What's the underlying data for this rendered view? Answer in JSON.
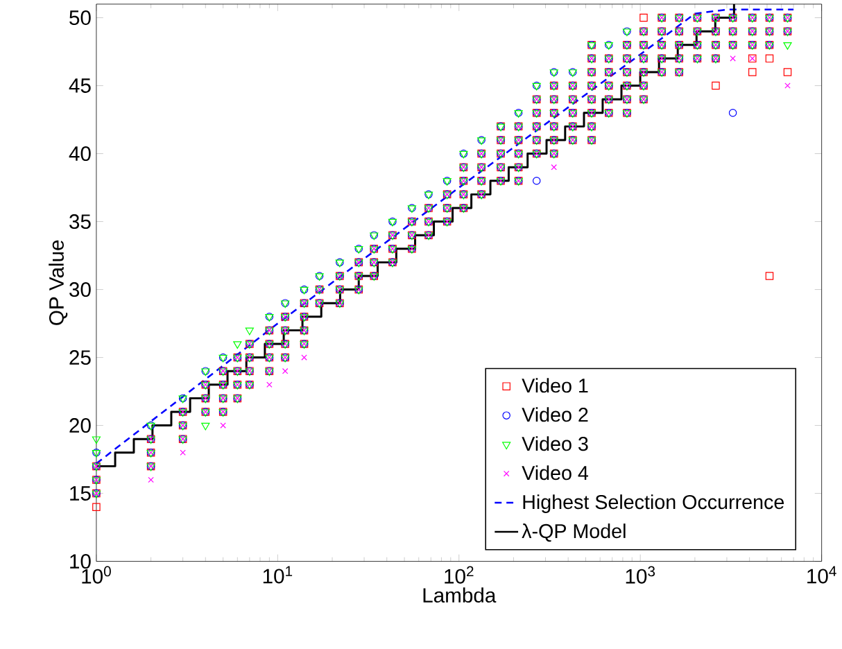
{
  "chart_data": {
    "type": "scatter",
    "xlabel": "Lambda",
    "ylabel": "QP Value",
    "log": "x",
    "xlim": [
      1,
      10000
    ],
    "ylim": [
      10,
      51
    ],
    "xticks": [
      {
        "value": 1,
        "label": "10$^{0}$"
      },
      {
        "value": 10,
        "label": "10$^{1}$"
      },
      {
        "value": 100,
        "label": "10$^{2}$"
      },
      {
        "value": 1000,
        "label": "10$^{3}$"
      },
      {
        "value": 10000,
        "label": "10$^{4}$"
      }
    ],
    "yticks": [
      10,
      15,
      20,
      25,
      30,
      35,
      40,
      45,
      50
    ],
    "legend": "bottom right",
    "series": [
      {
        "name": "Video 1",
        "color": "#ff0000",
        "marker": "square",
        "x": [
          1,
          1,
          1,
          2,
          2,
          2,
          3,
          3,
          3,
          4,
          4,
          4,
          5,
          5,
          5,
          5,
          6,
          6,
          6,
          6,
          7,
          7,
          7,
          7,
          9,
          9,
          9,
          9,
          11,
          11,
          11,
          11,
          14,
          14,
          14,
          14,
          17,
          17,
          22,
          22,
          22,
          28,
          28,
          28,
          34,
          34,
          34,
          43,
          43,
          43,
          55,
          55,
          55,
          68,
          68,
          68,
          86,
          86,
          86,
          106,
          106,
          106,
          106,
          133,
          133,
          133,
          133,
          170,
          170,
          170,
          170,
          213,
          213,
          213,
          213,
          213,
          268,
          268,
          268,
          268,
          268,
          334,
          334,
          334,
          334,
          334,
          334,
          424,
          424,
          424,
          424,
          424,
          539,
          539,
          539,
          539,
          539,
          539,
          539,
          670,
          670,
          670,
          670,
          670,
          844,
          844,
          844,
          844,
          844,
          844,
          1043,
          1043,
          1043,
          1043,
          1043,
          1043,
          1313,
          1313,
          1313,
          1313,
          1313,
          1638,
          1638,
          1638,
          1638,
          1638,
          2063,
          2063,
          2063,
          2063,
          2606,
          2606,
          2606,
          2606,
          3238,
          3238,
          3238,
          4150,
          4150,
          4150,
          5157,
          5157,
          5157,
          6488,
          6488,
          1,
          170,
          539,
          1043,
          2606,
          4150,
          4150,
          5157,
          5157,
          6488
        ],
        "values": [
          15,
          16,
          17,
          17,
          18,
          19,
          19,
          20,
          21,
          21,
          22,
          23,
          21,
          22,
          23,
          24,
          22,
          23,
          24,
          25,
          23,
          24,
          25,
          26,
          24,
          25,
          26,
          27,
          25,
          26,
          27,
          28,
          26,
          27,
          28,
          29,
          29,
          30,
          29,
          30,
          31,
          30,
          31,
          32,
          31,
          32,
          33,
          32,
          33,
          34,
          33,
          34,
          35,
          34,
          35,
          36,
          35,
          36,
          37,
          36,
          37,
          38,
          39,
          37,
          38,
          39,
          40,
          38,
          39,
          40,
          41,
          38,
          39,
          40,
          41,
          42,
          40,
          41,
          42,
          43,
          44,
          40,
          41,
          42,
          43,
          44,
          45,
          41,
          42,
          43,
          44,
          45,
          41,
          42,
          43,
          44,
          45,
          46,
          47,
          43,
          44,
          45,
          46,
          47,
          43,
          44,
          45,
          46,
          47,
          48,
          44,
          45,
          46,
          47,
          48,
          49,
          46,
          47,
          48,
          49,
          50,
          46,
          47,
          48,
          49,
          50,
          47,
          48,
          49,
          50,
          47,
          48,
          49,
          50,
          48,
          49,
          50,
          48,
          49,
          50,
          48,
          49,
          50,
          49,
          50,
          14,
          42,
          48,
          50,
          45,
          47,
          46,
          47,
          31,
          46
        ]
      },
      {
        "name": "Video 2",
        "color": "#0000ff",
        "marker": "circle",
        "x": [
          1,
          1,
          1,
          2,
          2,
          2,
          3,
          3,
          3,
          4,
          4,
          4,
          5,
          5,
          5,
          5,
          6,
          6,
          6,
          6,
          7,
          7,
          7,
          7,
          9,
          9,
          9,
          9,
          11,
          11,
          11,
          11,
          14,
          14,
          14,
          14,
          17,
          17,
          22,
          22,
          22,
          28,
          28,
          28,
          34,
          34,
          34,
          43,
          43,
          43,
          55,
          55,
          55,
          68,
          68,
          68,
          86,
          86,
          86,
          106,
          106,
          106,
          106,
          133,
          133,
          133,
          133,
          170,
          170,
          170,
          170,
          213,
          213,
          213,
          213,
          213,
          268,
          268,
          268,
          268,
          268,
          334,
          334,
          334,
          334,
          334,
          334,
          424,
          424,
          424,
          424,
          424,
          539,
          539,
          539,
          539,
          539,
          539,
          539,
          670,
          670,
          670,
          670,
          670,
          844,
          844,
          844,
          844,
          844,
          844,
          1043,
          1043,
          1043,
          1043,
          1043,
          1043,
          1313,
          1313,
          1313,
          1313,
          1313,
          1638,
          1638,
          1638,
          1638,
          1638,
          2063,
          2063,
          2063,
          2063,
          2606,
          2606,
          2606,
          2606,
          3238,
          3238,
          3238,
          4150,
          4150,
          4150,
          5157,
          5157,
          5157,
          6488,
          6488,
          1,
          2,
          3,
          4,
          5,
          9,
          11,
          14,
          17,
          22,
          28,
          34,
          43,
          55,
          68,
          86,
          106,
          133,
          170,
          213,
          268,
          334,
          424,
          539,
          670,
          844,
          268,
          3238
        ],
        "values": [
          15,
          16,
          17,
          17,
          18,
          19,
          19,
          20,
          21,
          21,
          22,
          23,
          21,
          22,
          23,
          24,
          22,
          23,
          24,
          25,
          23,
          24,
          25,
          26,
          24,
          25,
          26,
          27,
          25,
          26,
          27,
          28,
          26,
          27,
          28,
          29,
          29,
          30,
          29,
          30,
          31,
          30,
          31,
          32,
          31,
          32,
          33,
          32,
          33,
          34,
          33,
          34,
          35,
          34,
          35,
          36,
          35,
          36,
          37,
          36,
          37,
          38,
          39,
          37,
          38,
          39,
          40,
          38,
          39,
          40,
          41,
          38,
          39,
          40,
          41,
          42,
          40,
          41,
          42,
          43,
          44,
          40,
          41,
          42,
          43,
          44,
          45,
          41,
          42,
          43,
          44,
          45,
          41,
          42,
          43,
          44,
          45,
          46,
          47,
          43,
          44,
          45,
          46,
          47,
          43,
          44,
          45,
          46,
          47,
          48,
          44,
          45,
          46,
          47,
          48,
          49,
          46,
          47,
          48,
          49,
          50,
          46,
          47,
          48,
          49,
          50,
          47,
          48,
          49,
          50,
          47,
          48,
          49,
          50,
          48,
          49,
          50,
          48,
          49,
          50,
          48,
          49,
          50,
          49,
          50,
          18,
          20,
          22,
          24,
          25,
          28,
          29,
          30,
          31,
          32,
          33,
          34,
          35,
          36,
          37,
          38,
          40,
          41,
          42,
          43,
          45,
          46,
          46,
          48,
          48,
          49,
          38,
          43
        ]
      },
      {
        "name": "Video 3",
        "color": "#00ff00",
        "marker": "triangle",
        "x": [
          1,
          1,
          1,
          2,
          2,
          2,
          3,
          3,
          3,
          4,
          4,
          4,
          5,
          5,
          5,
          5,
          6,
          6,
          6,
          6,
          7,
          7,
          7,
          7,
          9,
          9,
          9,
          9,
          11,
          11,
          11,
          11,
          14,
          14,
          14,
          14,
          17,
          17,
          22,
          22,
          22,
          28,
          28,
          28,
          34,
          34,
          34,
          43,
          43,
          43,
          55,
          55,
          55,
          68,
          68,
          68,
          86,
          86,
          86,
          106,
          106,
          106,
          106,
          133,
          133,
          133,
          133,
          170,
          170,
          170,
          170,
          213,
          213,
          213,
          213,
          213,
          268,
          268,
          268,
          268,
          268,
          334,
          334,
          334,
          334,
          334,
          334,
          424,
          424,
          424,
          424,
          424,
          539,
          539,
          539,
          539,
          539,
          539,
          539,
          670,
          670,
          670,
          670,
          670,
          844,
          844,
          844,
          844,
          844,
          844,
          1043,
          1043,
          1043,
          1043,
          1043,
          1043,
          1313,
          1313,
          1313,
          1313,
          1313,
          1638,
          1638,
          1638,
          1638,
          1638,
          2063,
          2063,
          2063,
          2063,
          2606,
          2606,
          2606,
          2606,
          3238,
          3238,
          3238,
          4150,
          4150,
          4150,
          5157,
          5157,
          5157,
          6488,
          6488,
          1,
          2,
          3,
          4,
          5,
          9,
          11,
          14,
          17,
          22,
          28,
          34,
          43,
          55,
          68,
          86,
          106,
          133,
          170,
          213,
          268,
          334,
          424,
          539,
          670,
          844,
          1,
          4,
          6,
          7,
          6488
        ],
        "values": [
          15,
          16,
          17,
          17,
          18,
          19,
          19,
          20,
          21,
          21,
          22,
          23,
          21,
          22,
          23,
          24,
          22,
          23,
          24,
          25,
          23,
          24,
          25,
          26,
          24,
          25,
          26,
          27,
          25,
          26,
          27,
          28,
          26,
          27,
          28,
          29,
          29,
          30,
          29,
          30,
          31,
          30,
          31,
          32,
          31,
          32,
          33,
          32,
          33,
          34,
          33,
          34,
          35,
          34,
          35,
          36,
          35,
          36,
          37,
          36,
          37,
          38,
          39,
          37,
          38,
          39,
          40,
          38,
          39,
          40,
          41,
          38,
          39,
          40,
          41,
          42,
          40,
          41,
          42,
          43,
          44,
          40,
          41,
          42,
          43,
          44,
          45,
          41,
          42,
          43,
          44,
          45,
          41,
          42,
          43,
          44,
          45,
          46,
          47,
          43,
          44,
          45,
          46,
          47,
          43,
          44,
          45,
          46,
          47,
          48,
          44,
          45,
          46,
          47,
          48,
          49,
          46,
          47,
          48,
          49,
          50,
          46,
          47,
          48,
          49,
          50,
          47,
          48,
          49,
          50,
          47,
          48,
          49,
          50,
          48,
          49,
          50,
          48,
          49,
          50,
          48,
          49,
          50,
          49,
          50,
          18,
          20,
          22,
          24,
          25,
          28,
          29,
          30,
          31,
          32,
          33,
          34,
          35,
          36,
          37,
          38,
          40,
          41,
          42,
          43,
          45,
          46,
          46,
          48,
          48,
          49,
          19,
          20,
          26,
          27,
          48
        ]
      },
      {
        "name": "Video 4",
        "color": "#ff00ff",
        "marker": "cross",
        "x": [
          1,
          1,
          1,
          2,
          2,
          2,
          3,
          3,
          3,
          4,
          4,
          4,
          5,
          5,
          5,
          5,
          6,
          6,
          6,
          6,
          7,
          7,
          7,
          7,
          9,
          9,
          9,
          9,
          11,
          11,
          11,
          11,
          14,
          14,
          14,
          14,
          17,
          17,
          22,
          22,
          22,
          28,
          28,
          28,
          34,
          34,
          34,
          43,
          43,
          43,
          55,
          55,
          55,
          68,
          68,
          68,
          86,
          86,
          86,
          106,
          106,
          106,
          106,
          133,
          133,
          133,
          133,
          170,
          170,
          170,
          170,
          213,
          213,
          213,
          213,
          213,
          268,
          268,
          268,
          268,
          268,
          334,
          334,
          334,
          334,
          334,
          334,
          424,
          424,
          424,
          424,
          424,
          539,
          539,
          539,
          539,
          539,
          539,
          539,
          670,
          670,
          670,
          670,
          670,
          844,
          844,
          844,
          844,
          844,
          844,
          1043,
          1043,
          1043,
          1043,
          1043,
          1043,
          1313,
          1313,
          1313,
          1313,
          1313,
          1638,
          1638,
          1638,
          1638,
          1638,
          2063,
          2063,
          2063,
          2063,
          2606,
          2606,
          2606,
          2606,
          3238,
          3238,
          3238,
          4150,
          4150,
          4150,
          5157,
          5157,
          5157,
          6488,
          6488,
          2,
          3,
          5,
          9,
          11,
          14,
          334,
          3238,
          4150,
          6488
        ],
        "values": [
          15,
          16,
          17,
          17,
          18,
          19,
          19,
          20,
          21,
          21,
          22,
          23,
          21,
          22,
          23,
          24,
          22,
          23,
          24,
          25,
          23,
          24,
          25,
          26,
          24,
          25,
          26,
          27,
          25,
          26,
          27,
          28,
          26,
          27,
          28,
          29,
          29,
          30,
          29,
          30,
          31,
          30,
          31,
          32,
          31,
          32,
          33,
          32,
          33,
          34,
          33,
          34,
          35,
          34,
          35,
          36,
          35,
          36,
          37,
          36,
          37,
          38,
          39,
          37,
          38,
          39,
          40,
          38,
          39,
          40,
          41,
          38,
          39,
          40,
          41,
          42,
          40,
          41,
          42,
          43,
          44,
          40,
          41,
          42,
          43,
          44,
          45,
          41,
          42,
          43,
          44,
          45,
          41,
          42,
          43,
          44,
          45,
          46,
          47,
          43,
          44,
          45,
          46,
          47,
          43,
          44,
          45,
          46,
          47,
          48,
          44,
          45,
          46,
          47,
          48,
          49,
          46,
          47,
          48,
          49,
          50,
          46,
          47,
          48,
          49,
          50,
          47,
          48,
          49,
          50,
          47,
          48,
          49,
          50,
          48,
          49,
          50,
          48,
          49,
          50,
          48,
          49,
          50,
          49,
          50,
          16,
          18,
          20,
          23,
          24,
          25,
          39,
          47,
          47,
          45
        ]
      },
      {
        "name": "Highest Selection Occurrence",
        "type": "line",
        "line_style": "dashed",
        "color": "#0000ff",
        "x": [
          1,
          10,
          100,
          1000,
          2000,
          3000,
          7000
        ],
        "values": [
          17.2,
          27.5,
          37.5,
          47.3,
          50.3,
          50.6,
          50.6
        ]
      },
      {
        "name": "λ-QP Model",
        "type": "step",
        "color": "#000000",
        "x": [
          1,
          1.27,
          1.61,
          2.04,
          2.59,
          3.29,
          4.17,
          5.29,
          6.72,
          8.5,
          10.8,
          13.7,
          17.4,
          22.1,
          28,
          35.6,
          45.1,
          57.3,
          72.7,
          92.2,
          117,
          149,
          188,
          239,
          304,
          385,
          489,
          620,
          787,
          999,
          1268,
          1609,
          2042,
          2591,
          3288
        ],
        "values": [
          17,
          18,
          19,
          20,
          21,
          22,
          23,
          24,
          25,
          26,
          27,
          28,
          29,
          30,
          31,
          32,
          33,
          34,
          35,
          36,
          37,
          38,
          39,
          40,
          41,
          42,
          43,
          44,
          45,
          46,
          47,
          48,
          49,
          50,
          51
        ]
      }
    ]
  }
}
